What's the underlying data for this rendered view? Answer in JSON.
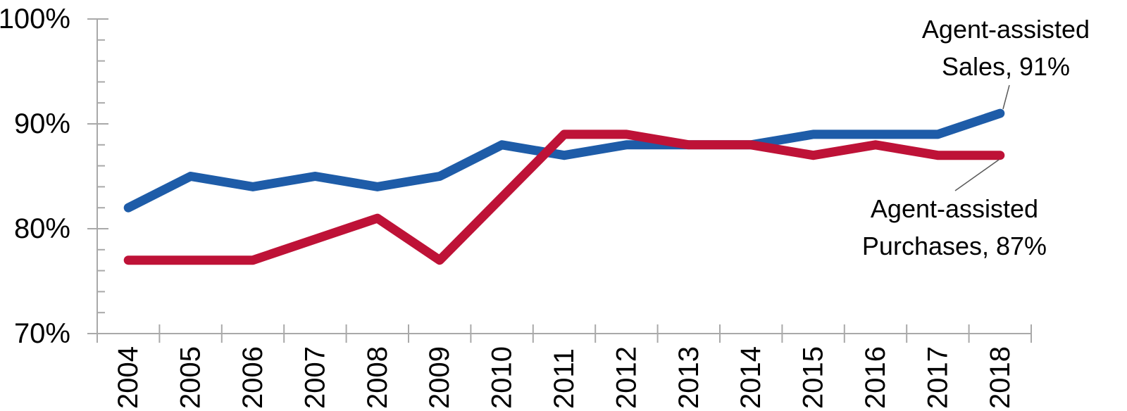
{
  "chart_data": {
    "type": "line",
    "title": "",
    "xlabel": "",
    "ylabel": "",
    "grid": false,
    "legend_position": "none (direct series labels at line ends)",
    "categories": [
      "2004",
      "2005",
      "2006",
      "2007",
      "2008",
      "2009",
      "2010",
      "2011",
      "2012",
      "2013",
      "2014",
      "2015",
      "2016",
      "2017",
      "2018"
    ],
    "series": [
      {
        "name": "Agent-assisted Sales",
        "color": "#1E5CA8",
        "final_value": "91%",
        "annotation_lines": [
          "Agent-assisted",
          "Sales, 91%"
        ],
        "values": [
          82,
          85,
          84,
          85,
          84,
          85,
          88,
          87,
          88,
          88,
          88,
          89,
          89,
          89,
          91
        ]
      },
      {
        "name": "Agent-assisted Purchases",
        "color": "#BE1237",
        "final_value": "87%",
        "annotation_lines": [
          "Agent-assisted",
          "Purchases, 87%"
        ],
        "values": [
          77,
          77,
          77,
          79,
          81,
          77,
          83,
          89,
          89,
          88,
          88,
          87,
          88,
          87,
          87
        ]
      }
    ],
    "y_axis": {
      "min": 70,
      "max": 100,
      "major_tick_step": 10,
      "minor_tick_step": 2,
      "tick_labels": [
        {
          "value": 100,
          "text": "100%"
        },
        {
          "value": 90,
          "text": "90%"
        },
        {
          "value": 80,
          "text": "80%"
        },
        {
          "value": 70,
          "text": "70%"
        }
      ]
    },
    "x_axis": {
      "labels_rotated_degrees": 90,
      "ticks_between_categories": true
    },
    "style": {
      "axis_color": "#A9A9A9",
      "text_color": "#000000",
      "leader_line_color": "#595959",
      "background_color": "#FFFFFF"
    }
  }
}
